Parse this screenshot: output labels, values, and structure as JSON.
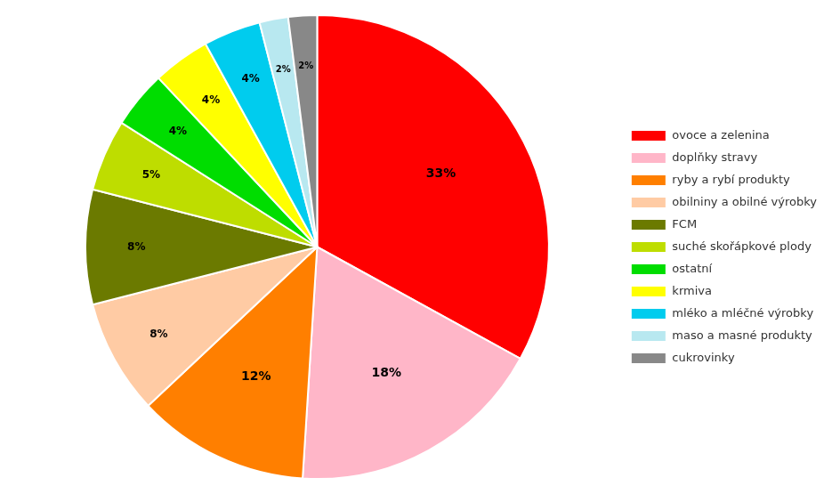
{
  "chart_data": {
    "type": "pie",
    "categories": [
      "ovoce a zelenina",
      "doplňky stravy",
      "ryby a rybí produkty",
      "obilniny a obilné výrobky",
      "FCM",
      "suché skořápkové plody",
      "ostatní",
      "krmiva",
      "mléko a mléčné výrobky",
      "maso a masné produkty",
      "cukrovinky"
    ],
    "values": [
      33,
      18,
      12,
      8,
      8,
      5,
      4,
      4,
      4,
      2,
      2
    ],
    "value_labels": [
      "33%",
      "18%",
      "12%",
      "8%",
      "8%",
      "5%",
      "4%",
      "4%",
      "4%",
      "2%",
      "2%"
    ],
    "colors": [
      "#FF0000",
      "#FFB6C8",
      "#FF7F00",
      "#FFCBA4",
      "#6B7A00",
      "#BEDD00",
      "#00DD00",
      "#FFFF00",
      "#00CCEE",
      "#B8E8F0",
      "#888888"
    ],
    "data_labels": true,
    "legend": "right"
  }
}
